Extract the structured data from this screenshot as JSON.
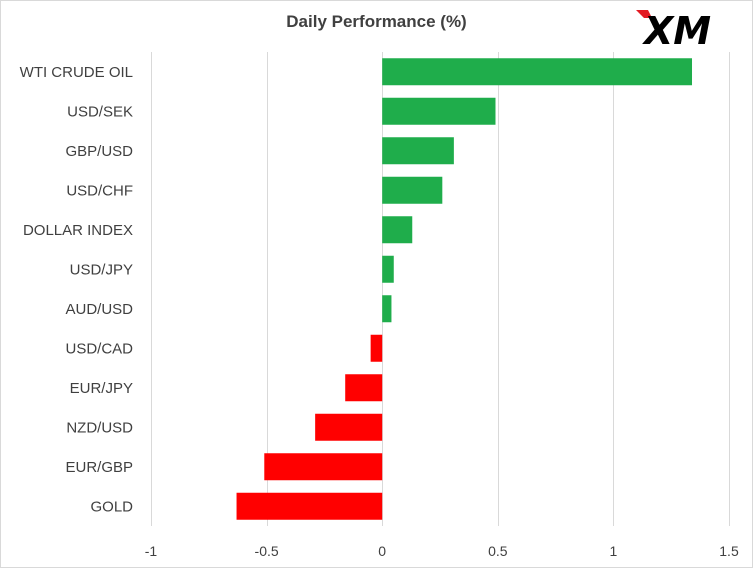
{
  "chart_data": {
    "type": "bar",
    "orientation": "horizontal",
    "title": "Daily Performance  (%)",
    "categories": [
      "WTI CRUDE OIL",
      "USD/SEK",
      "GBP/USD",
      "USD/CHF",
      "DOLLAR INDEX",
      "USD/JPY",
      "AUD/USD",
      "USD/CAD",
      "EUR/JPY",
      "NZD/USD",
      "EUR/GBP",
      "GOLD"
    ],
    "values": [
      1.34,
      0.49,
      0.31,
      0.26,
      0.13,
      0.05,
      0.04,
      -0.05,
      -0.16,
      -0.29,
      -0.51,
      -0.63
    ],
    "xlim": [
      -1,
      1.5
    ],
    "xticks": [
      "-1",
      "-0.5",
      "0",
      "0.5",
      "1",
      "1.5"
    ],
    "xtick_values": [
      -1,
      -0.5,
      0,
      0.5,
      1,
      1.5
    ],
    "grid": "vertical",
    "colors": {
      "positive": "#1fad4b",
      "negative": "#ff0000",
      "grid": "#d9d9d9",
      "text": "#404040"
    }
  },
  "logo": {
    "text": "XM",
    "icon": "xm-logo-icon",
    "color": "#000000"
  }
}
